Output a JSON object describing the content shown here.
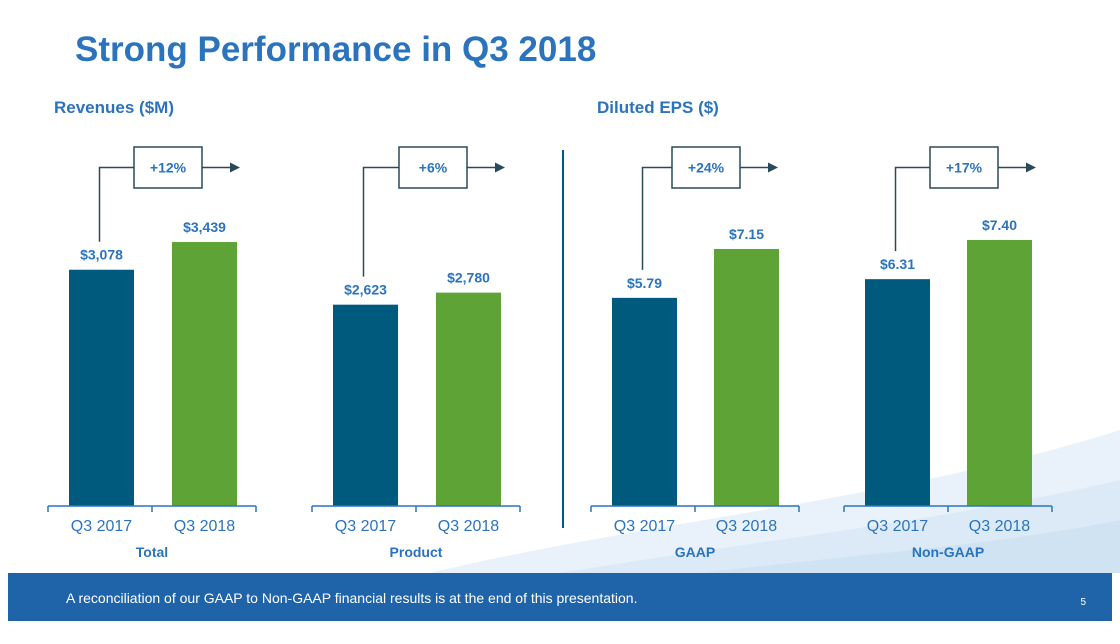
{
  "slide_title": "Strong Performance in Q3 2018",
  "sections": [
    {
      "title": "Revenues ($M)"
    },
    {
      "title": "Diluted EPS ($)"
    }
  ],
  "chart_data": [
    {
      "type": "bar",
      "title": "",
      "group_label": "Total",
      "categories": [
        "Q3 2017",
        "Q3 2018"
      ],
      "values": [
        3078,
        3439
      ],
      "data_labels": [
        "$3,078",
        "$3,439"
      ],
      "change_label": "+12%",
      "colors": [
        "#005a7d",
        "#5ea336"
      ],
      "ylim": [
        0,
        3700
      ]
    },
    {
      "type": "bar",
      "title": "",
      "group_label": "Product",
      "categories": [
        "Q3 2017",
        "Q3 2018"
      ],
      "values": [
        2623,
        2780
      ],
      "data_labels": [
        "$2,623",
        "$2,780"
      ],
      "change_label": "+6%",
      "colors": [
        "#005a7d",
        "#5ea336"
      ],
      "ylim": [
        0,
        3700
      ]
    },
    {
      "type": "bar",
      "title": "",
      "group_label": "GAAP",
      "categories": [
        "Q3 2017",
        "Q3 2018"
      ],
      "values": [
        5.79,
        7.15
      ],
      "data_labels": [
        "$5.79",
        "$7.15"
      ],
      "change_label": "+24%",
      "colors": [
        "#005a7d",
        "#5ea336"
      ],
      "ylim": [
        0,
        7.9
      ]
    },
    {
      "type": "bar",
      "title": "",
      "group_label": "Non-GAAP",
      "categories": [
        "Q3 2017",
        "Q3 2018"
      ],
      "values": [
        6.31,
        7.4
      ],
      "data_labels": [
        "$6.31",
        "$7.40"
      ],
      "change_label": "+17%",
      "colors": [
        "#005a7d",
        "#5ea336"
      ],
      "ylim": [
        0,
        7.9
      ]
    }
  ],
  "footer": {
    "note": "A reconciliation of our GAAP to Non-GAAP financial results is at the end of this presentation.",
    "page_number": "5"
  },
  "colors": {
    "title": "#2b74bd",
    "bar_prior": "#005a7d",
    "bar_current": "#5ea336",
    "axis": "#2b74bd",
    "footer_bg": "#1f63a8"
  }
}
